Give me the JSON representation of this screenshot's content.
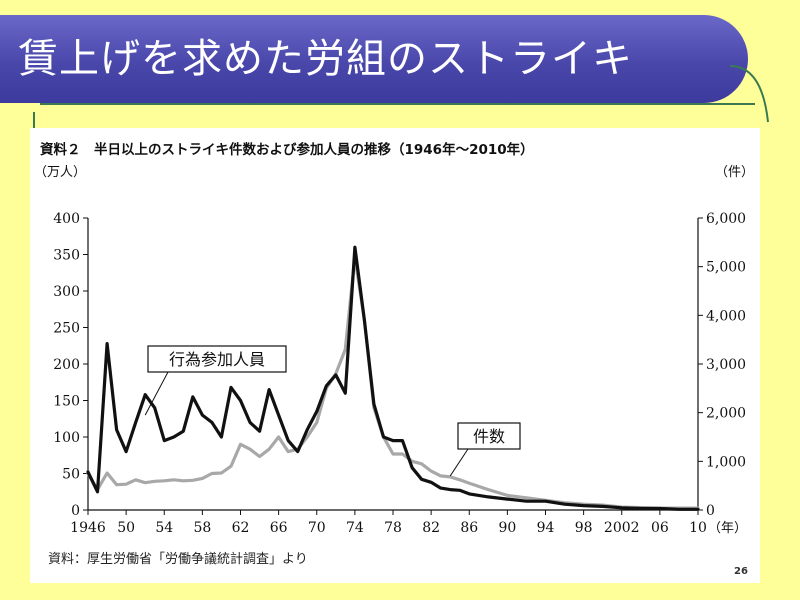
{
  "slide": {
    "title": "賃上げを求めた労組のストライキ",
    "source_note": "資料：厚生労働省「労働争議統計調査」より",
    "page_number": "26"
  },
  "colors": {
    "slide_background": "#ffff99",
    "banner": "#4a47ab",
    "participants_line": "#111111",
    "cases_line": "#a8a8a8"
  },
  "chart_data": {
    "type": "line",
    "title": "資料２　半日以上のストライキ件数および参加人員の推移（1946年〜2010年）",
    "y_left_unit": "（万人）",
    "y_right_unit": "（件）",
    "x_unit": "（年）",
    "ylim_left": [
      0,
      400
    ],
    "ylim_right": [
      0,
      6000
    ],
    "xlim": [
      1946,
      2010
    ],
    "y_left_ticks": [
      "0",
      "50",
      "100",
      "150",
      "200",
      "250",
      "300",
      "350",
      "400"
    ],
    "y_right_ticks": [
      "0",
      "1,000",
      "2,000",
      "3,000",
      "4,000",
      "5,000",
      "6,000"
    ],
    "x_ticks": [
      {
        "year": 1946,
        "label": "1946"
      },
      {
        "year": 1950,
        "label": "50"
      },
      {
        "year": 1954,
        "label": "54"
      },
      {
        "year": 1958,
        "label": "58"
      },
      {
        "year": 1962,
        "label": "62"
      },
      {
        "year": 1966,
        "label": "66"
      },
      {
        "year": 1970,
        "label": "70"
      },
      {
        "year": 1974,
        "label": "74"
      },
      {
        "year": 1978,
        "label": "78"
      },
      {
        "year": 1982,
        "label": "82"
      },
      {
        "year": 1986,
        "label": "86"
      },
      {
        "year": 1990,
        "label": "90"
      },
      {
        "year": 1994,
        "label": "94"
      },
      {
        "year": 1998,
        "label": "98"
      },
      {
        "year": 2002,
        "label": "2002"
      },
      {
        "year": 2006,
        "label": "06"
      },
      {
        "year": 2010,
        "label": "10"
      }
    ],
    "grid": false,
    "series": [
      {
        "name": "行為参加人員",
        "axis": "left",
        "x": [
          1946,
          1947,
          1948,
          1949,
          1950,
          1951,
          1952,
          1953,
          1954,
          1955,
          1956,
          1957,
          1958,
          1959,
          1960,
          1961,
          1962,
          1963,
          1964,
          1965,
          1966,
          1967,
          1968,
          1969,
          1970,
          1971,
          1972,
          1973,
          1974,
          1975,
          1976,
          1977,
          1978,
          1979,
          1980,
          1981,
          1982,
          1983,
          1984,
          1985,
          1986,
          1988,
          1990,
          1992,
          1994,
          1996,
          1998,
          2000,
          2002,
          2004,
          2006,
          2008,
          2010
        ],
        "values": [
          52,
          25,
          228,
          110,
          80,
          120,
          158,
          140,
          95,
          100,
          108,
          155,
          130,
          120,
          100,
          168,
          150,
          120,
          108,
          165,
          130,
          95,
          80,
          110,
          135,
          170,
          185,
          160,
          360,
          260,
          145,
          100,
          95,
          95,
          58,
          42,
          38,
          30,
          28,
          27,
          22,
          18,
          15,
          12,
          12,
          8,
          6,
          5,
          3,
          2,
          2,
          1,
          1
        ]
      },
      {
        "name": "件数",
        "axis": "right",
        "x": [
          1946,
          1947,
          1948,
          1949,
          1950,
          1951,
          1952,
          1953,
          1954,
          1955,
          1956,
          1957,
          1958,
          1959,
          1960,
          1961,
          1962,
          1963,
          1964,
          1965,
          1966,
          1967,
          1968,
          1969,
          1970,
          1971,
          1972,
          1973,
          1974,
          1975,
          1976,
          1977,
          1978,
          1979,
          1980,
          1981,
          1982,
          1983,
          1984,
          1985,
          1986,
          1988,
          1990,
          1992,
          1994,
          1996,
          1998,
          2000,
          2002,
          2004,
          2006,
          2008,
          2010
        ],
        "values": [
          750,
          420,
          760,
          520,
          530,
          620,
          560,
          590,
          600,
          620,
          600,
          610,
          650,
          750,
          760,
          900,
          1350,
          1250,
          1100,
          1250,
          1500,
          1200,
          1250,
          1500,
          1800,
          2500,
          2800,
          3300,
          5200,
          3900,
          2100,
          1500,
          1150,
          1150,
          1000,
          950,
          800,
          700,
          680,
          620,
          550,
          420,
          300,
          250,
          200,
          150,
          120,
          100,
          60,
          50,
          40,
          40,
          40
        ]
      }
    ]
  }
}
